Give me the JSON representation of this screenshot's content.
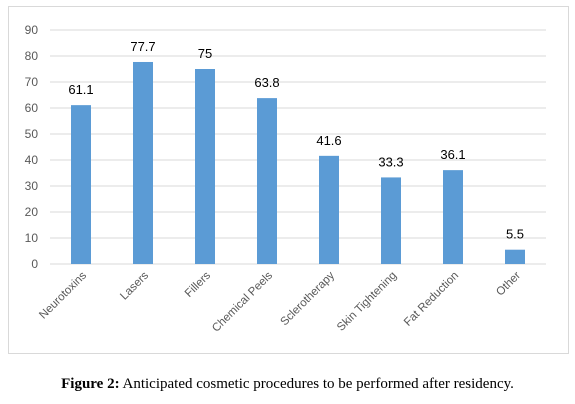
{
  "chart_data": {
    "type": "bar",
    "categories": [
      "Neurotoxins",
      "Lasers",
      "Fillers",
      "Chemical Peels",
      "Sclerotherapy",
      "Skin Tightening",
      "Fat Reduction",
      "Other"
    ],
    "values": [
      61.1,
      77.7,
      75,
      63.8,
      41.6,
      33.3,
      36.1,
      5.5
    ],
    "data_labels": [
      "61.1",
      "77.7",
      "75",
      "63.8",
      "41.6",
      "33.3",
      "36.1",
      "5.5"
    ],
    "yticks": [
      "0",
      "10",
      "20",
      "30",
      "40",
      "50",
      "60",
      "70",
      "80",
      "90"
    ],
    "ylim": [
      0,
      90
    ],
    "grid": true,
    "bar_color": "#5b9bd5",
    "grid_color": "#d9d9d9",
    "label_color": "#000000",
    "tick_color": "#595959"
  },
  "caption": {
    "label": "Figure 2:",
    "text": " Anticipated cosmetic procedures to be performed after residency."
  }
}
